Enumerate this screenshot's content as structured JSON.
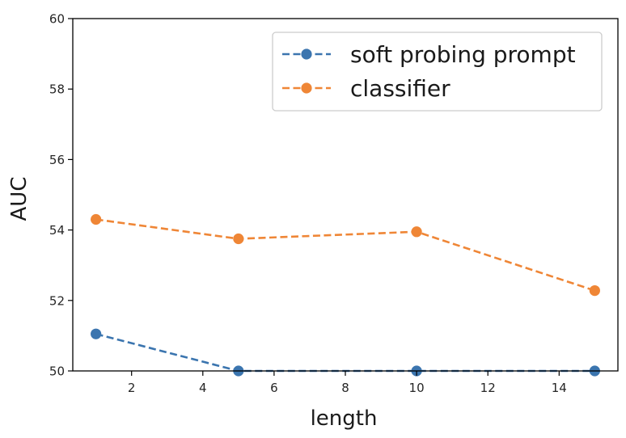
{
  "chart_data": {
    "type": "line",
    "title": "",
    "xlabel": "length",
    "ylabel": "AUC",
    "xlim": [
      0.35,
      15.65
    ],
    "ylim": [
      50,
      60
    ],
    "xticks": [
      2,
      4,
      6,
      8,
      10,
      12,
      14
    ],
    "yticks": [
      50,
      52,
      54,
      56,
      58,
      60
    ],
    "grid": false,
    "legend_position": "top-right",
    "series": [
      {
        "name": "soft probing prompt",
        "color": "#3b75af",
        "line_style": "dashed",
        "marker": "circle",
        "x": [
          1,
          5,
          10,
          15
        ],
        "y": [
          51.05,
          50.0,
          50.0,
          50.0
        ]
      },
      {
        "name": "classifier",
        "color": "#ef8636",
        "line_style": "dashed",
        "marker": "circle",
        "x": [
          1,
          5,
          10,
          15
        ],
        "y": [
          54.3,
          53.75,
          53.95,
          52.28
        ]
      }
    ]
  }
}
